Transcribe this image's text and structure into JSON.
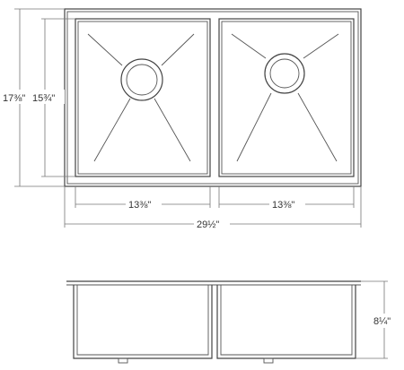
{
  "dimensions": {
    "overall_depth": "17⅜\"",
    "bowl_depth": "15¾\"",
    "left_bowl_width": "13⅜\"",
    "right_bowl_width": "13⅜\"",
    "overall_width": "29½\"",
    "bowl_height": "8¼\""
  }
}
